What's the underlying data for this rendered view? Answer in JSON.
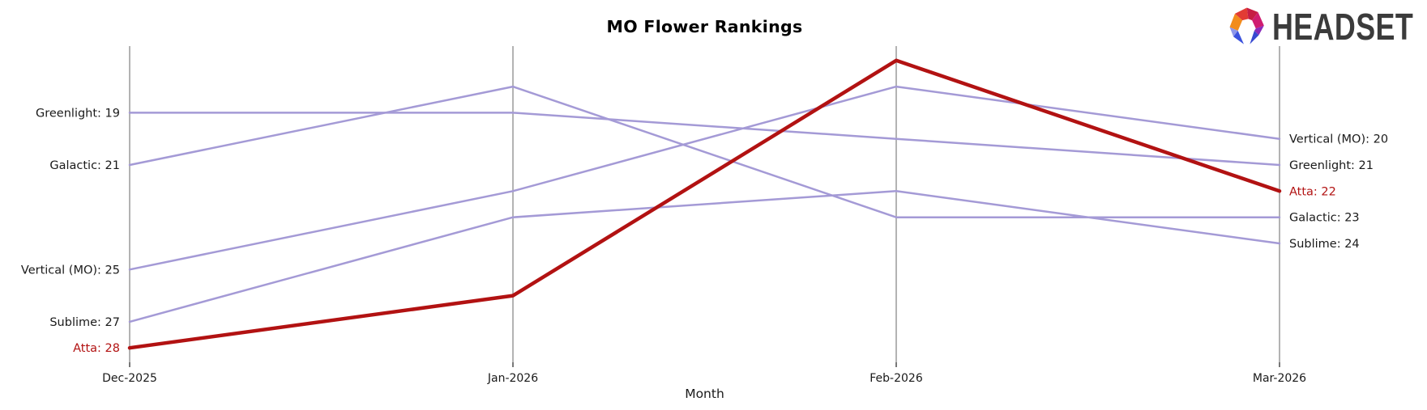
{
  "branding": {
    "logo_text": "HEADSET",
    "logo_icon": "headset-faceted-ring-icon",
    "logo_text_color": "#3b3b3b",
    "logo_facet_colors": [
      "#f28c1c",
      "#e23b34",
      "#c61d44",
      "#cf1d70",
      "#8a2bba",
      "#3749d1",
      "#8d97ea",
      "#3b52dd"
    ]
  },
  "chart_data": {
    "type": "line",
    "variant": "bump_ranking",
    "title": "MO Flower Rankings",
    "xlabel": "Month",
    "ylabel": "",
    "x_categories": [
      "Dec-2025",
      "Jan-2026",
      "Feb-2026",
      "Mar-2026"
    ],
    "y_axis": {
      "inverted": true,
      "best_rank_shown": 17,
      "worst_rank_shown": 28,
      "gridlines": false,
      "tick_labels_hidden": true
    },
    "legend": "none (direct start/end labels)",
    "series": [
      {
        "name": "Greenlight",
        "values": [
          19,
          19,
          20,
          21
        ],
        "color": "#a49ad6",
        "line_width": 2.5,
        "highlighted": false,
        "start_label": "Greenlight: 19",
        "end_label": "Greenlight: 21"
      },
      {
        "name": "Galactic",
        "values": [
          21,
          18,
          23,
          23
        ],
        "color": "#a49ad6",
        "line_width": 2.5,
        "highlighted": false,
        "start_label": "Galactic: 21",
        "end_label": "Galactic: 23"
      },
      {
        "name": "Vertical (MO)",
        "values": [
          25,
          22,
          18,
          20
        ],
        "color": "#a49ad6",
        "line_width": 2.5,
        "highlighted": false,
        "start_label": "Vertical (MO): 25",
        "end_label": "Vertical (MO): 20"
      },
      {
        "name": "Sublime",
        "values": [
          27,
          23,
          22,
          24
        ],
        "color": "#a49ad6",
        "line_width": 2.5,
        "highlighted": false,
        "start_label": "Sublime: 27",
        "end_label": "Sublime: 24"
      },
      {
        "name": "Atta",
        "values": [
          28,
          26,
          17,
          22
        ],
        "color": "#b21212",
        "line_width": 4.5,
        "highlighted": true,
        "start_label": "Atta: 28",
        "end_label": "Atta: 22"
      }
    ],
    "colors": {
      "axis_line": "#b3b3b3",
      "tick_mark": "#303030",
      "label_text": "#1a1a1a",
      "highlight_text": "#b21212",
      "background": "#ffffff"
    }
  }
}
